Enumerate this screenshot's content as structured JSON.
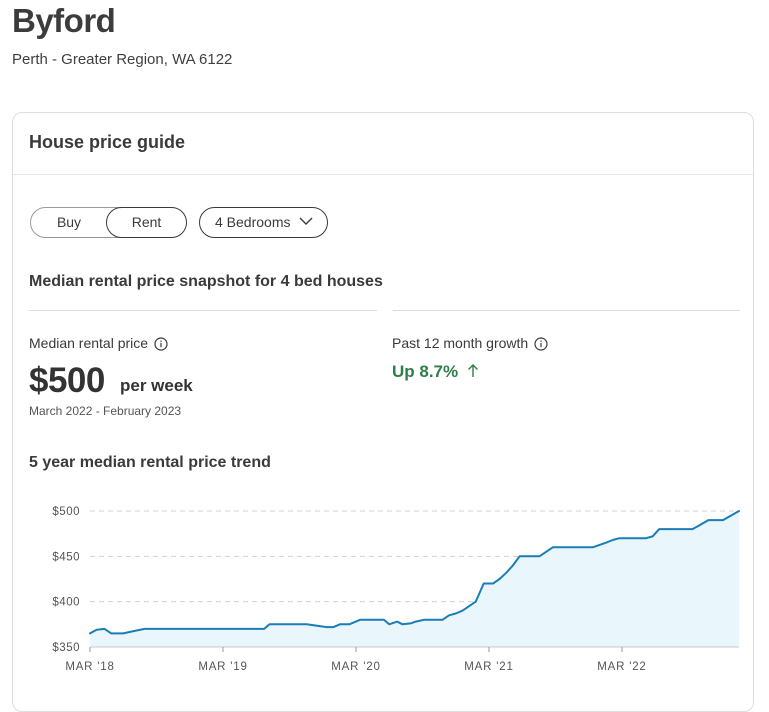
{
  "header": {
    "suburb": "Byford",
    "region": "Perth - Greater Region, WA 6122"
  },
  "card": {
    "title": "House price guide",
    "toggle": {
      "buy_label": "Buy",
      "rent_label": "Rent",
      "selected": "Rent"
    },
    "bedrooms_select": {
      "value": "4 Bedrooms"
    },
    "snapshot_title": "Median rental price snapshot for 4 bed houses",
    "median": {
      "label": "Median rental price",
      "value": "$500",
      "unit": "per week",
      "period": "March 2022 - February 2023"
    },
    "growth": {
      "label": "Past 12 month growth",
      "value": "Up 8.7%",
      "direction": "up"
    },
    "trend_title": "5 year median rental price trend"
  },
  "colors": {
    "growth_green": "#2f7d49",
    "line_blue": "#1a7db7",
    "area_fill": "#e9f6fb",
    "grid": "#d0d0d0"
  },
  "icons": {
    "info": "info-circle-icon",
    "chevron": "chevron-down-icon",
    "arrow": "arrow-up-icon"
  },
  "chart_data": {
    "type": "area",
    "title": "5 year median rental price trend",
    "xlabel": "",
    "ylabel": "",
    "ylim": [
      350,
      500
    ],
    "y_ticks": [
      350,
      400,
      450,
      500
    ],
    "y_tick_labels": [
      "$350",
      "$400",
      "$450",
      "$500"
    ],
    "x_ticks": [
      2018.17,
      2019.17,
      2020.17,
      2021.17,
      2022.17
    ],
    "x_tick_labels": [
      "MAR '18",
      "MAR '19",
      "MAR '20",
      "MAR '21",
      "MAR '22"
    ],
    "grid": true,
    "series": [
      {
        "x": [
          2018.17,
          2018.22,
          2018.28,
          2018.33,
          2018.42,
          2018.48,
          2018.58,
          2018.7,
          2018.85,
          2019.0,
          2019.17,
          2019.33,
          2019.48,
          2019.52,
          2019.65,
          2019.8,
          2019.95,
          2020.0,
          2020.05,
          2020.12,
          2020.2,
          2020.3,
          2020.38,
          2020.42,
          2020.48,
          2020.52,
          2020.58,
          2020.62,
          2020.68,
          2020.75,
          2020.82,
          2020.87,
          2020.92,
          2020.97,
          2021.02,
          2021.07,
          2021.1,
          2021.13,
          2021.17,
          2021.2,
          2021.25,
          2021.3,
          2021.35,
          2021.4,
          2021.45,
          2021.48,
          2021.55,
          2021.65,
          2021.72,
          2021.82,
          2021.95,
          2022.05,
          2022.1,
          2022.15,
          2022.25,
          2022.35,
          2022.4,
          2022.45,
          2022.55,
          2022.7,
          2022.75,
          2022.82,
          2022.88,
          2022.93,
          2023.05
        ],
        "values": [
          365,
          369,
          370,
          365,
          365,
          367,
          370,
          370,
          370,
          370,
          370,
          370,
          370,
          375,
          375,
          375,
          372,
          372,
          375,
          375,
          380,
          380,
          380,
          375,
          378,
          375,
          376,
          378,
          380,
          380,
          380,
          385,
          387,
          390,
          395,
          400,
          410,
          420,
          420,
          420,
          425,
          432,
          440,
          450,
          450,
          450,
          450,
          460,
          460,
          460,
          460,
          465,
          468,
          470,
          470,
          470,
          472,
          480,
          480,
          480,
          484,
          490,
          490,
          490,
          500
        ]
      }
    ]
  }
}
